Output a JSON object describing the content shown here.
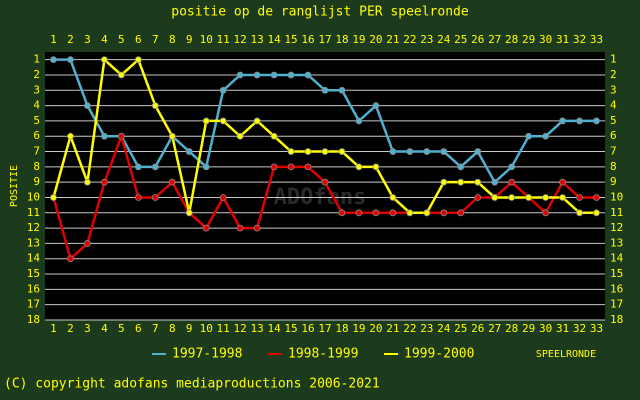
{
  "chart_data": {
    "type": "line",
    "title": "positie op de ranglijst PER speelronde",
    "ylabel": "POSITIE",
    "xlabel": "SPEELRONDE",
    "watermark": "ADOfans",
    "footer": "(C) copyright adofans mediaproductions 2006-2021",
    "x": [
      1,
      2,
      3,
      4,
      5,
      6,
      7,
      8,
      9,
      10,
      11,
      12,
      13,
      14,
      15,
      16,
      17,
      18,
      19,
      20,
      21,
      22,
      23,
      24,
      25,
      26,
      27,
      28,
      29,
      30,
      31,
      32,
      33
    ],
    "xlim": [
      0.5,
      33.5
    ],
    "xticks": [
      1,
      2,
      3,
      4,
      5,
      6,
      7,
      8,
      9,
      10,
      11,
      12,
      13,
      14,
      15,
      16,
      17,
      18,
      19,
      20,
      21,
      22,
      23,
      24,
      25,
      26,
      27,
      28,
      29,
      30,
      31,
      32,
      33
    ],
    "ylim": [
      0.5,
      18
    ],
    "yticks": [
      1,
      2,
      3,
      4,
      5,
      6,
      7,
      8,
      9,
      10,
      11,
      12,
      13,
      14,
      15,
      16,
      17,
      18
    ],
    "y_inverted": true,
    "grid": true,
    "series": [
      {
        "name": "1997-1998",
        "color": "#4fb0d0",
        "values": [
          1,
          1,
          4,
          6,
          6,
          8,
          8,
          6,
          7,
          8,
          3,
          2,
          2,
          2,
          2,
          2,
          3,
          3,
          5,
          4,
          7,
          7,
          7,
          7,
          8,
          7,
          9,
          8,
          6,
          6,
          5,
          5,
          5
        ]
      },
      {
        "name": "1998-1999",
        "color": "#e00000",
        "values": [
          10,
          14,
          13,
          9,
          6,
          10,
          10,
          9,
          11,
          12,
          10,
          12,
          12,
          8,
          8,
          8,
          9,
          11,
          11,
          11,
          11,
          11,
          11,
          11,
          11,
          10,
          10,
          9,
          10,
          11,
          9,
          10,
          10
        ]
      },
      {
        "name": "1999-2000",
        "color": "#ffff00",
        "values": [
          10,
          6,
          9,
          1,
          2,
          1,
          4,
          6,
          11,
          5,
          5,
          6,
          5,
          6,
          7,
          7,
          7,
          7,
          8,
          8,
          10,
          11,
          11,
          9,
          9,
          9,
          10,
          10,
          10,
          10,
          10,
          11,
          11
        ]
      }
    ]
  }
}
